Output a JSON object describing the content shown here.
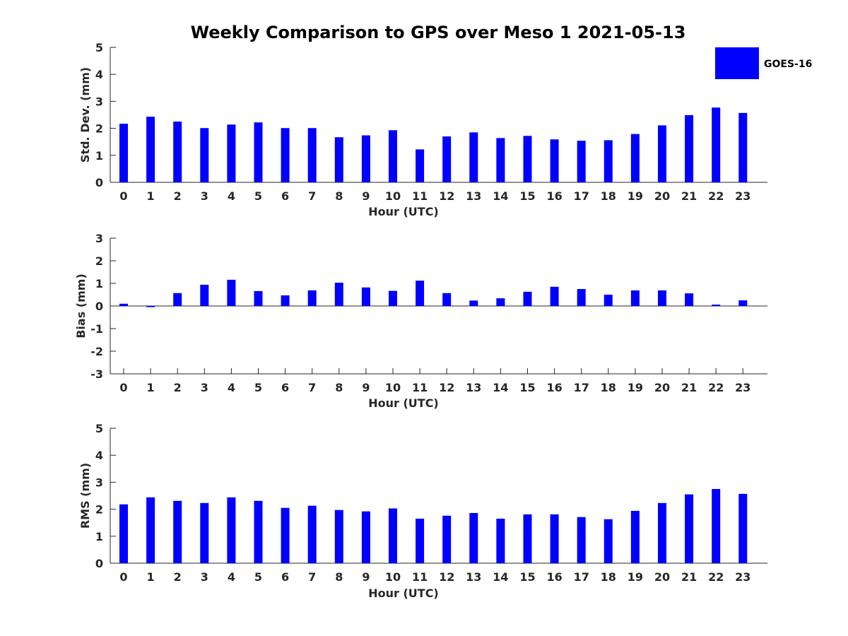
{
  "chart_data": {
    "title": "Weekly Comparison to GPS over Meso 1 2021-05-13",
    "type": "bar",
    "legend": {
      "entries": [
        "GOES-16"
      ],
      "placement": "top-right"
    },
    "colors": {
      "bar": "#0000ff",
      "axis": "#262626",
      "text": "#000000"
    },
    "panels": [
      {
        "id": "std",
        "type": "bar",
        "xlabel": "Hour (UTC)",
        "ylabel": "Std. Dev. (mm)",
        "ylim": [
          0,
          5
        ],
        "yticks": [
          "0",
          "1",
          "2",
          "3",
          "4",
          "5"
        ],
        "categories": [
          "0",
          "1",
          "2",
          "3",
          "4",
          "5",
          "6",
          "7",
          "8",
          "9",
          "10",
          "11",
          "12",
          "13",
          "14",
          "15",
          "16",
          "17",
          "18",
          "19",
          "20",
          "21",
          "22",
          "23"
        ],
        "series": [
          {
            "name": "GOES-16",
            "values": [
              2.17,
              2.43,
              2.25,
              2.01,
              2.14,
              2.22,
              2.01,
              2.01,
              1.67,
              1.74,
              1.93,
              1.22,
              1.7,
              1.85,
              1.64,
              1.72,
              1.59,
              1.54,
              1.56,
              1.79,
              2.11,
              2.49,
              2.77,
              2.57
            ]
          }
        ]
      },
      {
        "id": "bias",
        "type": "bar",
        "xlabel": "Hour (UTC)",
        "ylabel": "Bias (mm)",
        "ylim": [
          -3,
          3
        ],
        "yticks": [
          "-3",
          "-2",
          "-1",
          "0",
          "1",
          "2",
          "3"
        ],
        "categories": [
          "0",
          "1",
          "2",
          "3",
          "4",
          "5",
          "6",
          "7",
          "8",
          "9",
          "10",
          "11",
          "12",
          "13",
          "14",
          "15",
          "16",
          "17",
          "18",
          "19",
          "20",
          "21",
          "22",
          "23"
        ],
        "series": [
          {
            "name": "GOES-16",
            "values": [
              0.1,
              -0.05,
              0.57,
              0.94,
              1.16,
              0.66,
              0.47,
              0.69,
              1.03,
              0.82,
              0.67,
              1.12,
              0.57,
              0.24,
              0.34,
              0.63,
              0.85,
              0.75,
              0.5,
              0.69,
              0.69,
              0.56,
              0.06,
              0.25
            ]
          }
        ]
      },
      {
        "id": "rms",
        "type": "bar",
        "xlabel": "Hour (UTC)",
        "ylabel": "RMS (mm)",
        "ylim": [
          0,
          5
        ],
        "yticks": [
          "0",
          "1",
          "2",
          "3",
          "4",
          "5"
        ],
        "categories": [
          "0",
          "1",
          "2",
          "3",
          "4",
          "5",
          "6",
          "7",
          "8",
          "9",
          "10",
          "11",
          "12",
          "13",
          "14",
          "15",
          "16",
          "17",
          "18",
          "19",
          "20",
          "21",
          "22",
          "23"
        ],
        "series": [
          {
            "name": "GOES-16",
            "values": [
              2.18,
              2.44,
              2.31,
              2.23,
              2.44,
              2.31,
              2.05,
              2.13,
              1.97,
              1.92,
              2.03,
              1.65,
              1.76,
              1.86,
              1.65,
              1.81,
              1.81,
              1.71,
              1.63,
              1.94,
              2.23,
              2.55,
              2.75,
              2.57
            ]
          }
        ]
      }
    ]
  }
}
